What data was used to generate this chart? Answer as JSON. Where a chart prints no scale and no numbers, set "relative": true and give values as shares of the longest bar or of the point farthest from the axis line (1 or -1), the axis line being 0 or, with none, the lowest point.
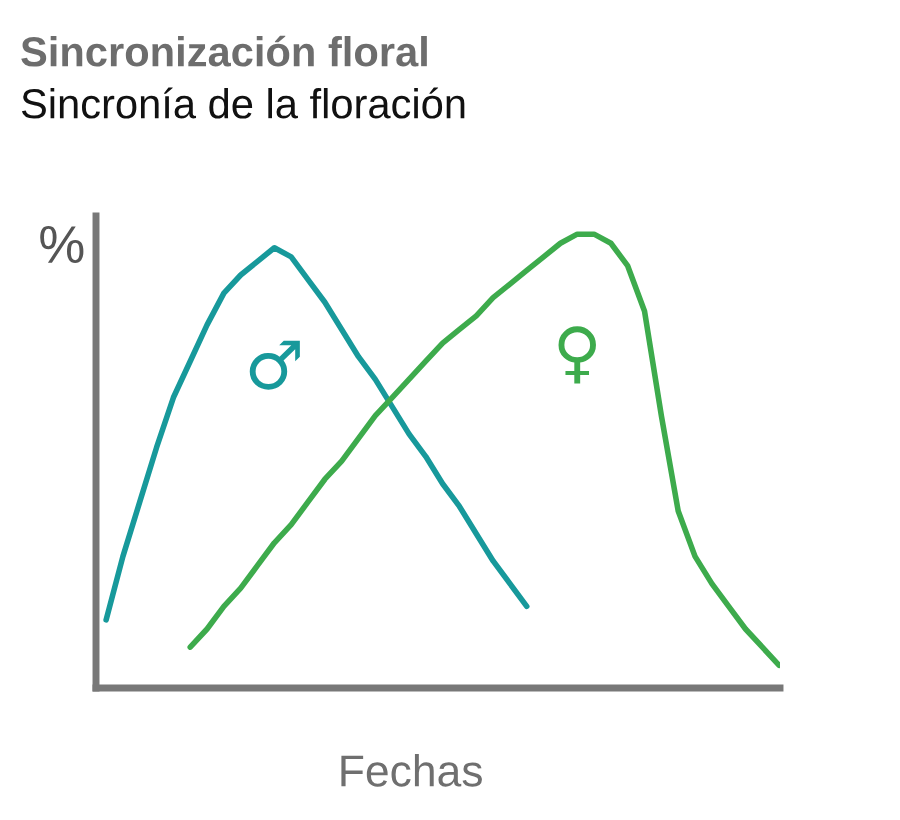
{
  "chart_data": {
    "type": "line",
    "title": "Sincronización floral",
    "subtitle": "Sincronía de la floración",
    "xlabel": "Fechas",
    "ylabel": "%",
    "relative": true,
    "categories": [
      null,
      null,
      null,
      null,
      null,
      null,
      null,
      null,
      null,
      null,
      null,
      null,
      null,
      null,
      null,
      null,
      null,
      null,
      null,
      null,
      null,
      null,
      null,
      null,
      null,
      null,
      null,
      null,
      null,
      null,
      null,
      null,
      null,
      null,
      null,
      null,
      null,
      null,
      null,
      null,
      null
    ],
    "series": [
      {
        "name": "♂",
        "color": "#17999b",
        "values": [
          0.15,
          0.29,
          0.41,
          0.53,
          0.64,
          0.72,
          0.8,
          0.87,
          0.91,
          0.94,
          0.97,
          0.95,
          0.9,
          0.85,
          0.79,
          0.73,
          0.68,
          0.62,
          0.56,
          0.51,
          0.45,
          0.4,
          0.34,
          0.28,
          0.23,
          0.18,
          null,
          null,
          null,
          null,
          null,
          null,
          null,
          null,
          null,
          null,
          null,
          null,
          null,
          null,
          null
        ]
      },
      {
        "name": "♀",
        "color": "#3dab4c",
        "values": [
          null,
          null,
          null,
          null,
          null,
          0.09,
          0.13,
          0.18,
          0.22,
          0.27,
          0.32,
          0.36,
          0.41,
          0.46,
          0.5,
          0.55,
          0.6,
          0.64,
          0.68,
          0.72,
          0.76,
          0.79,
          0.82,
          0.86,
          0.89,
          0.92,
          0.95,
          0.98,
          1.0,
          1.0,
          0.98,
          0.93,
          0.83,
          0.6,
          0.39,
          0.29,
          0.23,
          0.18,
          0.13,
          0.09,
          0.05
        ]
      }
    ]
  }
}
